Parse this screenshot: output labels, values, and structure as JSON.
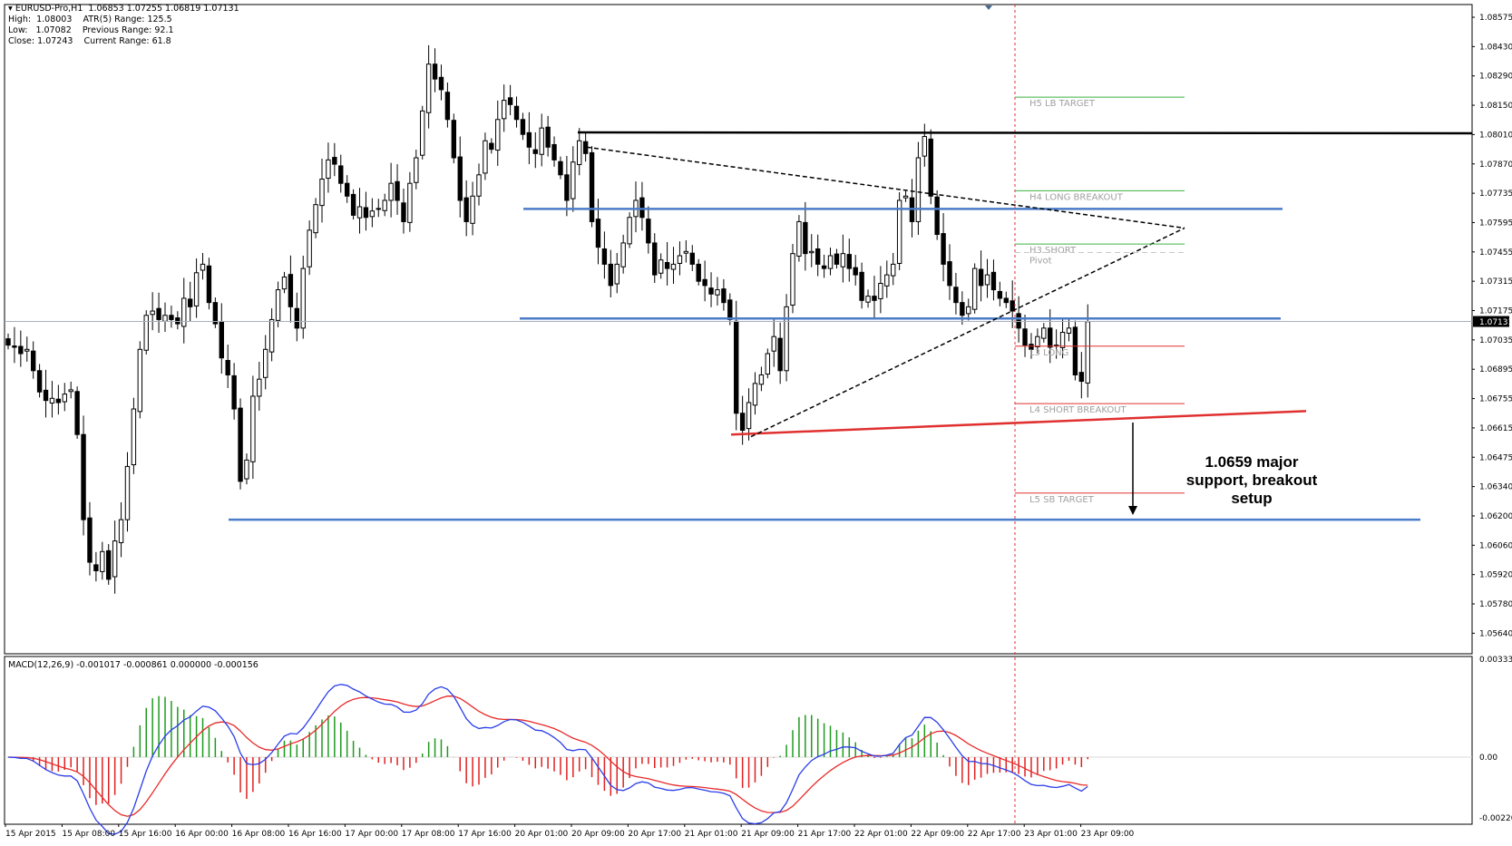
{
  "symbol": "EURUSD-Pro,H1",
  "ohlc_header": "1.06853 1.07255 1.06819 1.07131",
  "info": {
    "high_label": "High:",
    "high": "1.08003",
    "low_label": "Low:",
    "low": "1.07082",
    "close_label": "Close:",
    "close": "1.07243",
    "atr_label": "ATR(5) Range:",
    "atr": "125.5",
    "prev_label": "Previous Range:",
    "prev": "92.1",
    "cur_label": "Current Range:",
    "cur": "61.8"
  },
  "indicator_title": "MACD(12,26,9) -0.001017 -0.000861 0.000000 -0.000156",
  "annotation": {
    "line1": "1.0659 major",
    "line2": "support, breakout",
    "line3": "setup"
  },
  "colors": {
    "bull_candle": "#ffffff",
    "bear_candle": "#000000",
    "support_blue": "#4a7cc8",
    "trend_red": "#e03030",
    "target_green": "#3cb043",
    "macd_main": "#2a3ee8",
    "macd_signal": "#e82a2a",
    "hist_up": "#1e9a1e",
    "hist_down": "#e02020"
  },
  "chart_data": {
    "type": "candlestick",
    "price_axis": {
      "range": [
        1.0557,
        1.0862
      ],
      "ticks": [
        "1.08575",
        "1.08430",
        "1.08290",
        "1.08150",
        "1.08010",
        "1.07870",
        "1.07735",
        "1.07595",
        "1.07455",
        "1.07315",
        "1.07175",
        "1.07035",
        "1.06895",
        "1.06755",
        "1.06615",
        "1.06475",
        "1.06340",
        "1.06200",
        "1.06060",
        "1.05920",
        "1.05780",
        "1.05640"
      ],
      "current_price": "1.07131"
    },
    "time_axis": {
      "labels": [
        "15 Apr 2015",
        "15 Apr 08:00",
        "15 Apr 16:00",
        "16 Apr 00:00",
        "16 Apr 08:00",
        "16 Apr 16:00",
        "17 Apr 00:00",
        "17 Apr 08:00",
        "17 Apr 16:00",
        "20 Apr 01:00",
        "20 Apr 09:00",
        "20 Apr 17:00",
        "21 Apr 01:00",
        "21 Apr 09:00",
        "21 Apr 17:00",
        "22 Apr 01:00",
        "22 Apr 09:00",
        "22 Apr 17:00",
        "23 Apr 01:00",
        "23 Apr 09:00"
      ]
    },
    "candles_close_path": [
      1.0702,
      1.0701,
      1.0698,
      1.07,
      1.069,
      1.068,
      1.0676,
      1.0677,
      1.0675,
      1.0679,
      1.0681,
      1.066,
      1.062,
      1.06,
      1.0596,
      1.0605,
      1.0592,
      1.061,
      1.062,
      1.0645,
      1.0672,
      1.07,
      1.0716,
      1.0718,
      1.0714,
      1.0716,
      1.0714,
      1.0712,
      1.0724,
      1.072,
      1.0736,
      1.074,
      1.0722,
      1.0712,
      1.0696,
      1.0688,
      1.0672,
      1.0638,
      1.0648,
      1.0678,
      1.0686,
      1.07,
      1.0714,
      1.0728,
      1.0734,
      1.072,
      1.071,
      1.0738,
      1.0756,
      1.0768,
      1.078,
      1.0789,
      1.0787,
      1.0778,
      1.0772,
      1.0763,
      1.0767,
      1.0762,
      1.0765,
      1.0766,
      1.077,
      1.0778,
      1.077,
      1.076,
      1.0778,
      1.079,
      1.0812,
      1.0834,
      1.0827,
      1.0822,
      1.0808,
      1.079,
      1.077,
      1.076,
      1.0772,
      1.0782,
      1.0798,
      1.0794,
      1.0808,
      1.0817,
      1.0815,
      1.0808,
      1.0801,
      1.0795,
      1.0792,
      1.0804,
      1.0795,
      1.0789,
      1.0782,
      1.077,
      1.0788,
      1.0798,
      1.0792,
      1.076,
      1.0748,
      1.074,
      1.073,
      1.074,
      1.075,
      1.0762,
      1.077,
      1.0762,
      1.075,
      1.0735,
      1.0742,
      1.0738,
      1.074,
      1.0744,
      1.0746,
      1.074,
      1.0732,
      1.073,
      1.0726,
      1.0728,
      1.0722,
      1.0714,
      1.067,
      1.0662,
      1.0675,
      1.0684,
      1.0688,
      1.0698,
      1.0706,
      1.069,
      1.072,
      1.0745,
      1.076,
      1.0745,
      1.0746,
      1.074,
      1.0738,
      1.0744,
      1.074,
      1.0745,
      1.0738,
      1.0735,
      1.0723,
      1.0725,
      1.0723,
      1.0731,
      1.0735,
      1.074,
      1.077,
      1.0772,
      1.076,
      1.079,
      1.08,
      1.0772,
      1.0754,
      1.074,
      1.073,
      1.0722,
      1.0716,
      1.072,
      1.0738,
      1.073,
      1.0735,
      1.0728,
      1.0724,
      1.0722,
      1.0718,
      1.071,
      1.0702,
      1.07,
      1.0706,
      1.071,
      1.0701,
      1.0702,
      1.0708,
      1.071,
      1.0688,
      1.0685,
      1.0713
    ],
    "levels": [
      {
        "label": "H5 LB TARGET",
        "price": 1.08185,
        "color": "#3cb043"
      },
      {
        "label": "H4 LONG BREAKOUT",
        "price": 1.07745,
        "color": "#3cb043"
      },
      {
        "label": "H3 SHORT",
        "price": 1.07495,
        "color": "#3cb043"
      },
      {
        "label": "Pivot",
        "price": 1.07455,
        "color": "#c8c8c8"
      },
      {
        "label": "L3 LONG",
        "price": 1.07015,
        "color": "#e03030"
      },
      {
        "label": "L4 SHORT BREAKOUT",
        "price": 1.06745,
        "color": "#e03030"
      },
      {
        "label": "L5 SB TARGET",
        "price": 1.06325,
        "color": "#e03030"
      }
    ],
    "resistance_black": 1.08015,
    "support_blue": [
      1.0766,
      1.07145,
      1.062
    ],
    "support_red_trend": [
      1.066,
      1.0671
    ],
    "triangle_upper": [
      1.0795,
      1.0757
    ],
    "triangle_lower": [
      1.0659,
      1.0757
    ],
    "macd": {
      "axis_ticks": [
        "0.003337",
        "0.00",
        "-0.002201"
      ],
      "range": [
        -0.0022,
        0.0033
      ]
    }
  }
}
